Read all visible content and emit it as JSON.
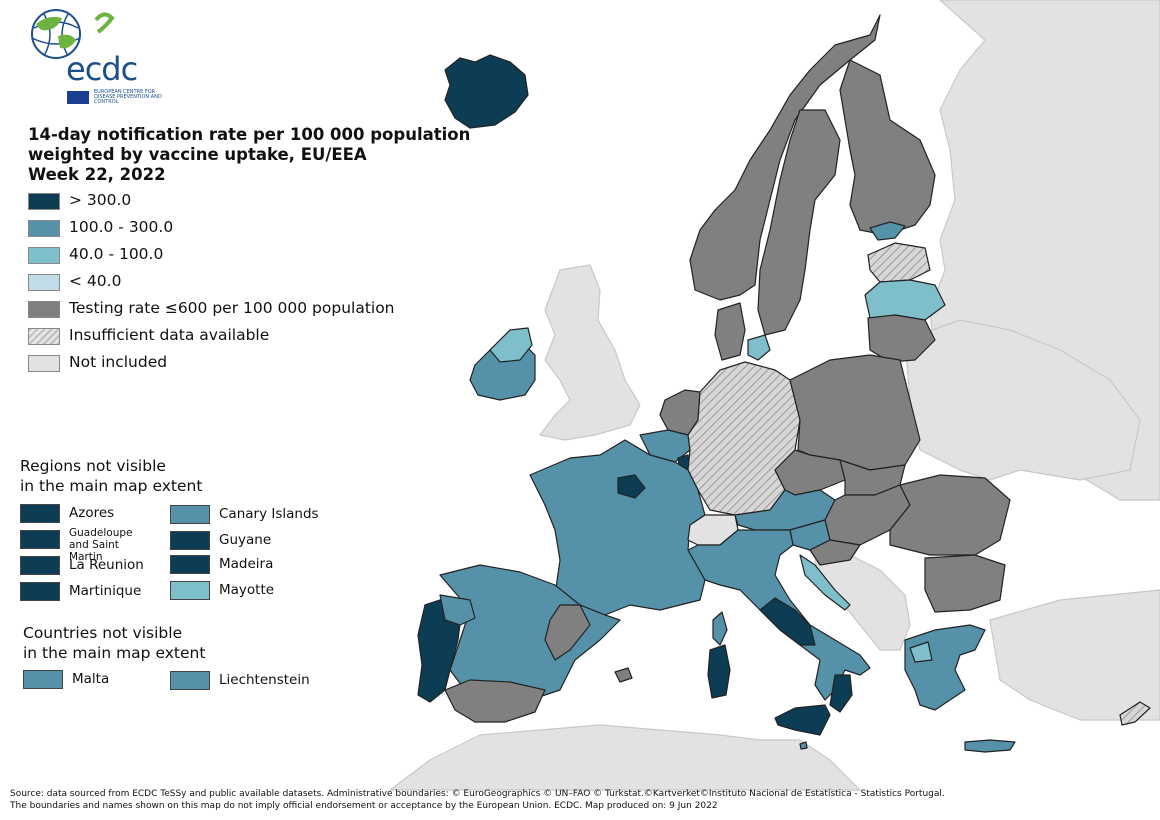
{
  "logo": {
    "text": "ecdc",
    "subtitle": "EUROPEAN CENTRE FOR DISEASE PREVENTION AND CONTROL"
  },
  "title": "14-day notification rate per 100 000 population\nweighted by vaccine uptake, EU/EEA\nWeek 22, 2022",
  "colors": {
    "gt300": "#0d3d54",
    "r100_300": "#5592aa",
    "r40_100": "#7fbfcb",
    "lt40": "#c3dcea",
    "testing": "#808080",
    "insufficient": "#cccccc",
    "not_included": "#e2e2e2",
    "sea": "#ffffff"
  },
  "legend": [
    {
      "label": "> 300.0",
      "color": "#0d3d54",
      "pattern": "solid"
    },
    {
      "label": "100.0 - 300.0",
      "color": "#5592aa",
      "pattern": "solid"
    },
    {
      "label": "40.0 - 100.0",
      "color": "#7fbfcb",
      "pattern": "solid"
    },
    {
      "label": "< 40.0",
      "color": "#c3dcea",
      "pattern": "solid"
    },
    {
      "label": "Testing rate ≤600 per 100 000 population",
      "color": "#808080",
      "pattern": "solid"
    },
    {
      "label": "Insufficient data available",
      "color": "#cccccc",
      "pattern": "hatched"
    },
    {
      "label": "Not included",
      "color": "#e2e2e2",
      "pattern": "solid"
    }
  ],
  "regions_title": "Regions not visible\nin the main map extent",
  "regions": [
    {
      "name": "Azores",
      "color": "#0d3d54"
    },
    {
      "name": "Guadeloupe\nand Saint Martin",
      "color": "#0d3d54"
    },
    {
      "name": "La Reunion",
      "color": "#0d3d54"
    },
    {
      "name": "Martinique",
      "color": "#0d3d54"
    },
    {
      "name": "Canary Islands",
      "color": "#5592aa"
    },
    {
      "name": "Guyane",
      "color": "#0d3d54"
    },
    {
      "name": "Madeira",
      "color": "#0d3d54"
    },
    {
      "name": "Mayotte",
      "color": "#7fbfcb"
    }
  ],
  "countries_title": "Countries not visible\nin the main map extent",
  "countries": [
    {
      "name": "Malta",
      "color": "#5592aa"
    },
    {
      "name": "Liechtenstein",
      "color": "#5592aa"
    }
  ],
  "source": "Source: data sourced from ECDC TeSSy and public available datasets. Administrative boundaries: © EuroGeographics © UN–FAO © Turkstat.©Kartverket©Instituto Nacional de Estatística - Statistics Portugal.\nThe boundaries and names shown on this map do not imply official endorsement or acceptance by the European Union. ECDC. Map produced on: 9 Jun 2022",
  "map_countries": [
    {
      "id": "iceland",
      "category": "gt300"
    },
    {
      "id": "norway",
      "category": "testing"
    },
    {
      "id": "sweden",
      "category": "testing"
    },
    {
      "id": "finland",
      "category": "testing"
    },
    {
      "id": "finland-south-region",
      "category": "r100_300"
    },
    {
      "id": "estonia",
      "category": "insufficient"
    },
    {
      "id": "latvia",
      "category": "r40_100"
    },
    {
      "id": "lithuania",
      "category": "testing"
    },
    {
      "id": "denmark",
      "category": "testing"
    },
    {
      "id": "denmark-islands",
      "category": "r40_100"
    },
    {
      "id": "ireland",
      "category": "r100_300"
    },
    {
      "id": "northern-ireland",
      "category": "r40_100"
    },
    {
      "id": "united-kingdom",
      "category": "not_included"
    },
    {
      "id": "netherlands",
      "category": "testing"
    },
    {
      "id": "belgium",
      "category": "r100_300"
    },
    {
      "id": "luxembourg",
      "category": "gt300"
    },
    {
      "id": "germany",
      "category": "insufficient"
    },
    {
      "id": "poland",
      "category": "testing"
    },
    {
      "id": "czechia",
      "category": "testing"
    },
    {
      "id": "slovakia",
      "category": "testing"
    },
    {
      "id": "austria",
      "category": "r100_300"
    },
    {
      "id": "hungary",
      "category": "testing"
    },
    {
      "id": "slovenia",
      "category": "r100_300"
    },
    {
      "id": "croatia",
      "category": "testing"
    },
    {
      "id": "croatia-coast",
      "category": "r40_100"
    },
    {
      "id": "romania",
      "category": "testing"
    },
    {
      "id": "bulgaria",
      "category": "testing"
    },
    {
      "id": "france",
      "category": "r100_300"
    },
    {
      "id": "paris-region",
      "category": "gt300"
    },
    {
      "id": "switzerland",
      "category": "not_included"
    },
    {
      "id": "spain",
      "category": "r100_300"
    },
    {
      "id": "spain-central",
      "category": "testing"
    },
    {
      "id": "andalusia",
      "category": "testing"
    },
    {
      "id": "portugal",
      "category": "gt300"
    },
    {
      "id": "portugal-north",
      "category": "r100_300"
    },
    {
      "id": "italy",
      "category": "r100_300"
    },
    {
      "id": "italy-central",
      "category": "gt300"
    },
    {
      "id": "calabria",
      "category": "gt300"
    },
    {
      "id": "sicily",
      "category": "gt300"
    },
    {
      "id": "sardinia",
      "category": "gt300"
    },
    {
      "id": "corsica",
      "category": "r100_300"
    },
    {
      "id": "greece",
      "category": "r100_300"
    },
    {
      "id": "greece-thessaly",
      "category": "r40_100"
    },
    {
      "id": "crete",
      "category": "r100_300"
    },
    {
      "id": "cyprus",
      "category": "insufficient"
    },
    {
      "id": "balearic",
      "category": "testing"
    }
  ]
}
